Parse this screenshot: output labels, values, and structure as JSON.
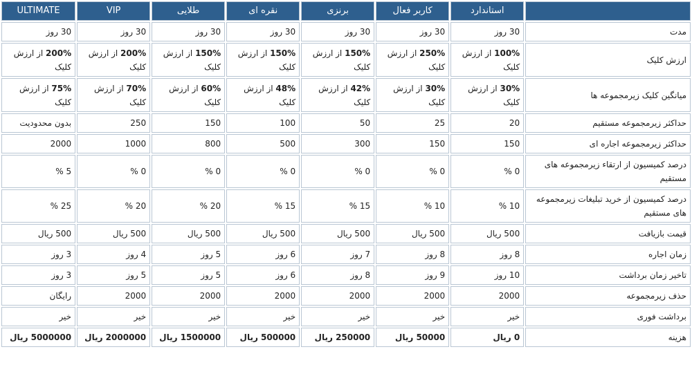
{
  "header": {
    "plans": [
      "استاندارد",
      "کاربر فعال",
      "برنزی",
      "نقره ای",
      "طلایی",
      "VIP",
      "ULTIMATE"
    ]
  },
  "rows": [
    {
      "label": "مدت",
      "values": [
        "30 روز",
        "30 روز",
        "30 روز",
        "30 روز",
        "30 روز",
        "30 روز",
        "30 روز"
      ]
    },
    {
      "label": "ارزش کلیک",
      "values": [
        {
          "pct": "100%",
          "tail": "از ارزش کلیک"
        },
        {
          "pct": "250%",
          "tail": "از ارزش کلیک"
        },
        {
          "pct": "150%",
          "tail": "از ارزش کلیک"
        },
        {
          "pct": "150%",
          "tail": "از ارزش کلیک"
        },
        {
          "pct": "150%",
          "tail": "از ارزش کلیک"
        },
        {
          "pct": "200%",
          "tail": "از ارزش کلیک"
        },
        {
          "pct": "200%",
          "tail": "از ارزش کلیک"
        }
      ]
    },
    {
      "label": "میانگین کلیک زیرمجموعه ها",
      "values": [
        {
          "pct": "30%",
          "tail": "از ارزش کلیک"
        },
        {
          "pct": "30%",
          "tail": "از ارزش کلیک"
        },
        {
          "pct": "42%",
          "tail": "از ارزش کلیک"
        },
        {
          "pct": "48%",
          "tail": "از ارزش کلیک"
        },
        {
          "pct": "60%",
          "tail": "از ارزش کلیک"
        },
        {
          "pct": "70%",
          "tail": "از ارزش کلیک"
        },
        {
          "pct": "75%",
          "tail": "از ارزش کلیک"
        }
      ]
    },
    {
      "label": "حداکثر زیرمجموعه مستقیم",
      "values": [
        "20",
        "25",
        "50",
        "100",
        "150",
        "250",
        "بدون محدودیت"
      ]
    },
    {
      "label": "حداکثر زیرمجموعه اجاره ای",
      "values": [
        "150",
        "150",
        "300",
        "500",
        "800",
        "1000",
        "2000"
      ]
    },
    {
      "label": "درصد کمیسیون از ارتقاء زیرمجموعه های مستقیم",
      "values": [
        "0 %",
        "0 %",
        "0 %",
        "0 %",
        "0 %",
        "0 %",
        "5 %"
      ]
    },
    {
      "label": "درصد کمیسیون از خرید تبلیغات زیرمجموعه های مستقیم",
      "values": [
        "10 %",
        "10 %",
        "15 %",
        "15 %",
        "20 %",
        "20 %",
        "25 %"
      ]
    },
    {
      "label": "قیمت بازیافت",
      "values": [
        "500 ریال",
        "500 ریال",
        "500 ریال",
        "500 ریال",
        "500 ریال",
        "500 ریال",
        "500 ریال"
      ]
    },
    {
      "label": "زمان اجاره",
      "values": [
        "8 روز",
        "8 روز",
        "7 روز",
        "6 روز",
        "5 روز",
        "4 روز",
        "3 روز"
      ]
    },
    {
      "label": "تاخیر زمان برداشت",
      "values": [
        "10 روز",
        "9 روز",
        "8 روز",
        "6 روز",
        "5 روز",
        "5 روز",
        "3 روز"
      ]
    },
    {
      "label": "حذف زیرمجموعه",
      "values": [
        "2000",
        "2000",
        "2000",
        "2000",
        "2000",
        "2000",
        "رایگان"
      ]
    },
    {
      "label": "برداشت فوری",
      "values": [
        "خیر",
        "خیر",
        "خیر",
        "خیر",
        "خیر",
        "خیر",
        "خیر"
      ]
    },
    {
      "label": "هزینه",
      "values": [
        "0 ریال",
        "50000 ریال",
        "250000 ریال",
        "500000 ریال",
        "1500000 ریال",
        "2000000 ریال",
        "5000000 ریال"
      ]
    }
  ]
}
